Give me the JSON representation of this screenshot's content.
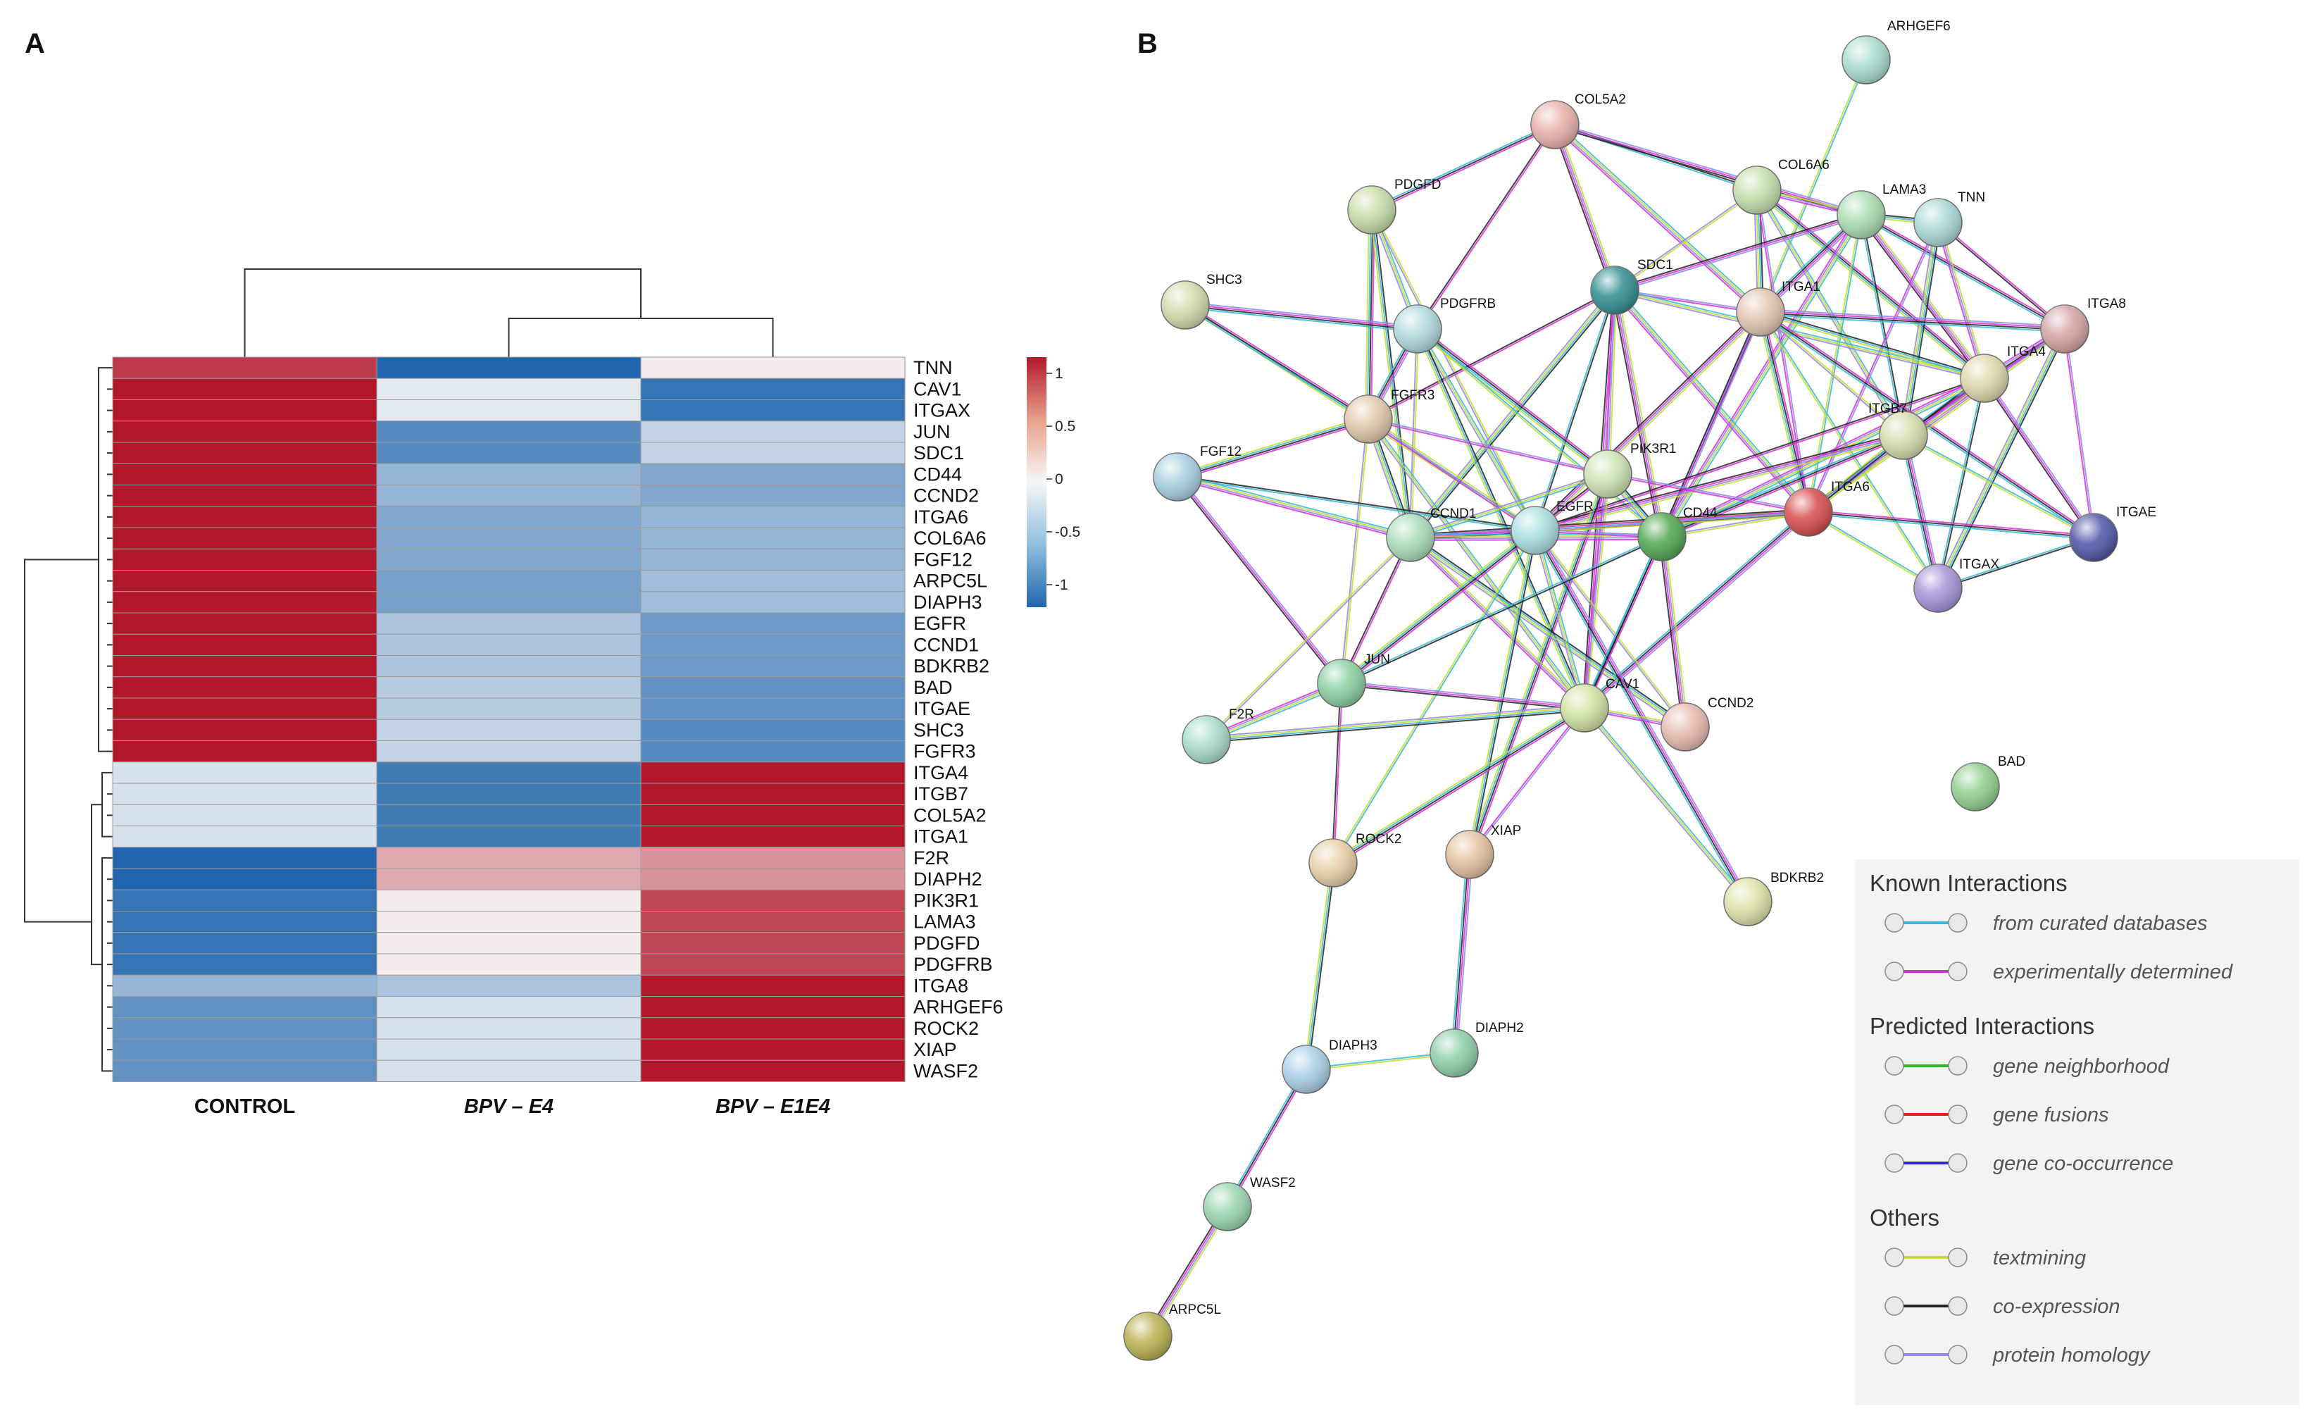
{
  "panels": {
    "a": "A",
    "b": "B"
  },
  "chart_data": [
    {
      "type": "heatmap",
      "title": "",
      "columns": [
        "CONTROL",
        "BPV – E4",
        "BPV – E1E4"
      ],
      "rows": [
        "TNN",
        "CAV1",
        "ITGAX",
        "JUN",
        "SDC1",
        "CD44",
        "CCND2",
        "ITGA6",
        "COL6A6",
        "FGF12",
        "ARPC5L",
        "DIAPH3",
        "EGFR",
        "CCND1",
        "BDKRB2",
        "BAD",
        "ITGAE",
        "SHC3",
        "FGFR3",
        "ITGA4",
        "ITGB7",
        "COL5A2",
        "ITGA1",
        "F2R",
        "DIAPH2",
        "PIK3R1",
        "LAMA3",
        "PDGFD",
        "PDGFRB",
        "ITGA8",
        "ARHGEF6",
        "ROCK2",
        "XIAP",
        "WASF2"
      ],
      "values": [
        [
          0.85,
          -1.0,
          0.05
        ],
        [
          1.0,
          -0.1,
          -0.9
        ],
        [
          1.0,
          -0.1,
          -0.9
        ],
        [
          1.0,
          -0.75,
          -0.25
        ],
        [
          1.0,
          -0.75,
          -0.25
        ],
        [
          1.0,
          -0.45,
          -0.55
        ],
        [
          1.0,
          -0.45,
          -0.55
        ],
        [
          1.0,
          -0.55,
          -0.45
        ],
        [
          1.0,
          -0.55,
          -0.45
        ],
        [
          1.0,
          -0.55,
          -0.45
        ],
        [
          1.0,
          -0.6,
          -0.4
        ],
        [
          1.0,
          -0.6,
          -0.4
        ],
        [
          1.0,
          -0.35,
          -0.65
        ],
        [
          1.0,
          -0.35,
          -0.65
        ],
        [
          1.0,
          -0.35,
          -0.65
        ],
        [
          1.0,
          -0.3,
          -0.7
        ],
        [
          1.0,
          -0.3,
          -0.7
        ],
        [
          1.0,
          -0.25,
          -0.75
        ],
        [
          1.0,
          -0.25,
          -0.75
        ],
        [
          -0.15,
          -0.85,
          1.0
        ],
        [
          -0.15,
          -0.85,
          1.0
        ],
        [
          -0.15,
          -0.85,
          1.0
        ],
        [
          -0.15,
          -0.85,
          1.0
        ],
        [
          -1.0,
          0.35,
          0.45
        ],
        [
          -1.0,
          0.35,
          0.45
        ],
        [
          -0.9,
          0.05,
          0.8
        ],
        [
          -0.9,
          0.05,
          0.8
        ],
        [
          -0.9,
          0.05,
          0.8
        ],
        [
          -0.9,
          0.05,
          0.8
        ],
        [
          -0.45,
          -0.35,
          1.0
        ],
        [
          -0.7,
          -0.15,
          1.0
        ],
        [
          -0.7,
          -0.15,
          1.0
        ],
        [
          -0.7,
          -0.15,
          1.0
        ],
        [
          -0.7,
          -0.15,
          1.0
        ]
      ],
      "color_scale": {
        "min": -1,
        "max": 1,
        "ticks": [
          "1",
          "0.5",
          "0",
          "-0.5",
          "-1"
        ],
        "low_color": "#2166ac",
        "mid_color": "#f7f7f7",
        "high_color": "#b2182b"
      },
      "dendrogram": {
        "columns": "CONTROL | (BPV – E4, BPV – E1E4)",
        "rows": "clustered"
      }
    },
    {
      "type": "network",
      "title": "",
      "nodes": [
        "ARHGEF6",
        "COL5A2",
        "COL6A6",
        "LAMA3",
        "TNN",
        "PDGFD",
        "SHC3",
        "SDC1",
        "ITGA1",
        "ITGA8",
        "PDGFRB",
        "ITGA4",
        "FGFR3",
        "ITGB7",
        "FGF12",
        "PIK3R1",
        "ITGA6",
        "ITGAE",
        "CCND1",
        "EGFR",
        "CD44",
        "ITGAX",
        "JUN",
        "CAV1",
        "CCND2",
        "F2R",
        "BAD",
        "ROCK2",
        "XIAP",
        "BDKRB2",
        "DIAPH3",
        "DIAPH2",
        "WASF2",
        "ARPC5L"
      ],
      "edges": [
        [
          "ARHGEF6",
          "ITGA1"
        ],
        [
          "COL5A2",
          "PDGFD"
        ],
        [
          "COL5A2",
          "SDC1"
        ],
        [
          "COL5A2",
          "COL6A6"
        ],
        [
          "COL5A2",
          "LAMA3"
        ],
        [
          "COL5A2",
          "ITGA1"
        ],
        [
          "COL5A2",
          "PDGFRB"
        ],
        [
          "COL6A6",
          "LAMA3"
        ],
        [
          "COL6A6",
          "ITGA1"
        ],
        [
          "COL6A6",
          "ITGA6"
        ],
        [
          "COL6A6",
          "ITGB7"
        ],
        [
          "COL6A6",
          "ITGA4"
        ],
        [
          "COL6A6",
          "SDC1"
        ],
        [
          "LAMA3",
          "TNN"
        ],
        [
          "LAMA3",
          "ITGA1"
        ],
        [
          "LAMA3",
          "ITGA6"
        ],
        [
          "LAMA3",
          "ITGA8"
        ],
        [
          "LAMA3",
          "ITGA4"
        ],
        [
          "LAMA3",
          "ITGB7"
        ],
        [
          "LAMA3",
          "SDC1"
        ],
        [
          "LAMA3",
          "CD44"
        ],
        [
          "TNN",
          "ITGA8"
        ],
        [
          "TNN",
          "ITGA4"
        ],
        [
          "TNN",
          "ITGB7"
        ],
        [
          "TNN",
          "ITGA6"
        ],
        [
          "PDGFD",
          "PDGFRB"
        ],
        [
          "PDGFD",
          "FGFR3"
        ],
        [
          "PDGFD",
          "EGFR"
        ],
        [
          "PDGFD",
          "CCND1"
        ],
        [
          "SHC3",
          "PDGFRB"
        ],
        [
          "SHC3",
          "EGFR"
        ],
        [
          "SHC3",
          "FGFR3"
        ],
        [
          "SDC1",
          "CD44"
        ],
        [
          "SDC1",
          "EGFR"
        ],
        [
          "SDC1",
          "CAV1"
        ],
        [
          "SDC1",
          "ITGA6"
        ],
        [
          "SDC1",
          "FGFR3"
        ],
        [
          "SDC1",
          "PIK3R1"
        ],
        [
          "SDC1",
          "CCND1"
        ],
        [
          "SDC1",
          "ITGA1"
        ],
        [
          "SDC1",
          "ITGA4"
        ],
        [
          "ITGA1",
          "ITGA6"
        ],
        [
          "ITGA1",
          "ITGB7"
        ],
        [
          "ITGA1",
          "ITGA4"
        ],
        [
          "ITGA1",
          "ITGA8"
        ],
        [
          "ITGA1",
          "ITGAX"
        ],
        [
          "ITGA1",
          "ITGAE"
        ],
        [
          "ITGA1",
          "EGFR"
        ],
        [
          "ITGA1",
          "CAV1"
        ],
        [
          "ITGA1",
          "CD44"
        ],
        [
          "ITGA8",
          "ITGA4"
        ],
        [
          "ITGA8",
          "ITGB7"
        ],
        [
          "ITGA8",
          "ITGA6"
        ],
        [
          "ITGA8",
          "ITGAX"
        ],
        [
          "ITGA8",
          "ITGAE"
        ],
        [
          "PDGFRB",
          "EGFR"
        ],
        [
          "PDGFRB",
          "PIK3R1"
        ],
        [
          "PDGFRB",
          "CCND1"
        ],
        [
          "PDGFRB",
          "CAV1"
        ],
        [
          "PDGFRB",
          "FGFR3"
        ],
        [
          "PDGFRB",
          "CD44"
        ],
        [
          "ITGA4",
          "ITGB7"
        ],
        [
          "ITGA4",
          "ITGA6"
        ],
        [
          "ITGA4",
          "ITGAX"
        ],
        [
          "ITGA4",
          "ITGAE"
        ],
        [
          "ITGA4",
          "CD44"
        ],
        [
          "ITGA4",
          "EGFR"
        ],
        [
          "FGFR3",
          "EGFR"
        ],
        [
          "FGFR3",
          "CCND1"
        ],
        [
          "FGFR3",
          "PIK3R1"
        ],
        [
          "FGFR3",
          "CAV1"
        ],
        [
          "FGFR3",
          "FGF12"
        ],
        [
          "FGFR3",
          "JUN"
        ],
        [
          "ITGB7",
          "ITGA6"
        ],
        [
          "ITGB7",
          "ITGAX"
        ],
        [
          "ITGB7",
          "ITGAE"
        ],
        [
          "ITGB7",
          "CD44"
        ],
        [
          "ITGB7",
          "EGFR"
        ],
        [
          "FGF12",
          "EGFR"
        ],
        [
          "FGF12",
          "JUN"
        ],
        [
          "FGF12",
          "CCND1"
        ],
        [
          "PIK3R1",
          "EGFR"
        ],
        [
          "PIK3R1",
          "CAV1"
        ],
        [
          "PIK3R1",
          "CD44"
        ],
        [
          "PIK3R1",
          "ITGA6"
        ],
        [
          "PIK3R1",
          "CCND1"
        ],
        [
          "PIK3R1",
          "XIAP"
        ],
        [
          "ITGA6",
          "CD44"
        ],
        [
          "ITGA6",
          "EGFR"
        ],
        [
          "ITGA6",
          "CAV1"
        ],
        [
          "ITGA6",
          "ITGAX"
        ],
        [
          "ITGA6",
          "ITGAE"
        ],
        [
          "ITGA6",
          "CCND1"
        ],
        [
          "ITGAE",
          "ITGAX"
        ],
        [
          "CCND1",
          "EGFR"
        ],
        [
          "CCND1",
          "CD44"
        ],
        [
          "CCND1",
          "JUN"
        ],
        [
          "CCND1",
          "CAV1"
        ],
        [
          "CCND1",
          "CCND2"
        ],
        [
          "EGFR",
          "CD44"
        ],
        [
          "EGFR",
          "CAV1"
        ],
        [
          "EGFR",
          "JUN"
        ],
        [
          "EGFR",
          "CCND2"
        ],
        [
          "EGFR",
          "XIAP"
        ],
        [
          "EGFR",
          "BDKRB2"
        ],
        [
          "EGFR",
          "ROCK2"
        ],
        [
          "CD44",
          "CAV1"
        ],
        [
          "CD44",
          "CCND2"
        ],
        [
          "CD44",
          "JUN"
        ],
        [
          "JUN",
          "CAV1"
        ],
        [
          "JUN",
          "F2R"
        ],
        [
          "JUN",
          "ROCK2"
        ],
        [
          "CAV1",
          "CCND2"
        ],
        [
          "CAV1",
          "F2R"
        ],
        [
          "CAV1",
          "XIAP"
        ],
        [
          "CAV1",
          "BDKRB2"
        ],
        [
          "CAV1",
          "ROCK2"
        ],
        [
          "F2R",
          "CCND1"
        ],
        [
          "ROCK2",
          "DIAPH3"
        ],
        [
          "XIAP",
          "DIAPH2"
        ],
        [
          "DIAPH3",
          "DIAPH2"
        ],
        [
          "DIAPH3",
          "WASF2"
        ],
        [
          "WASF2",
          "ARPC5L"
        ]
      ],
      "node_colors": {
        "ARHGEF6": "#a8dccf",
        "COL5A2": "#e8b0a9",
        "COL6A6": "#c2deaa",
        "LAMA3": "#a8dcb0",
        "TNN": "#a9d8d6",
        "PDGFD": "#c6dca6",
        "SHC3": "#cfdcaa",
        "SDC1": "#2e8c8e",
        "ITGA1": "#e2c4b0",
        "ITGA8": "#d4a3a2",
        "PDGFRB": "#b0d8dc",
        "ITGA4": "#ddd6aa",
        "FGFR3": "#e0c8aa",
        "ITGB7": "#d4dcaa",
        "FGF12": "#a6cfe0",
        "PIK3R1": "#cce3b2",
        "ITGA6": "#d64a4a",
        "ITGAE": "#4e52a6",
        "CCND1": "#a8dcb8",
        "EGFR": "#a8dede",
        "CD44": "#4fa650",
        "ITGAX": "#a692d8",
        "JUN": "#88cfa0",
        "CAV1": "#cfe2a2",
        "CCND2": "#e6baae",
        "F2R": "#a8dcc6",
        "BAD": "#8fcf8c",
        "ROCK2": "#e6cfa6",
        "XIAP": "#e4c09e",
        "BDKRB2": "#dde2a8",
        "DIAPH3": "#a8cfe8",
        "DIAPH2": "#8ccfa8",
        "WASF2": "#98d6b0",
        "ARPC5L": "#b8b04e"
      },
      "edge_colors": [
        "#38b8d8",
        "#d830d8",
        "#c8dc30",
        "#222222",
        "#8c8ce8"
      ],
      "legend": [
        {
          "group": "Known Interactions",
          "items": [
            {
              "label": "from curated databases",
              "color": "#38b8d8"
            },
            {
              "label": "experimentally determined",
              "color": "#d830d8"
            }
          ]
        },
        {
          "group": "Predicted Interactions",
          "items": [
            {
              "label": "gene neighborhood",
              "color": "#2db82d"
            },
            {
              "label": "gene fusions",
              "color": "#e02020"
            },
            {
              "label": "gene co-occurrence",
              "color": "#2828d8"
            }
          ]
        },
        {
          "group": "Others",
          "items": [
            {
              "label": "textmining",
              "color": "#c8dc30"
            },
            {
              "label": "co-expression",
              "color": "#222222"
            },
            {
              "label": "protein homology",
              "color": "#8c8ce8"
            }
          ]
        }
      ]
    }
  ]
}
